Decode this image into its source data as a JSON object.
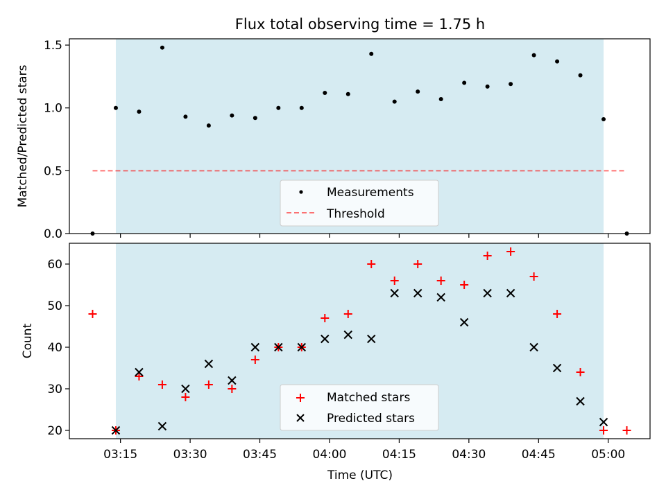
{
  "chart_data": [
    {
      "type": "scatter",
      "title": "Flux total observing time = 1.75 h",
      "ylabel": "Matched/Predicted stars",
      "xlabel": "",
      "ylim": [
        0,
        1.55
      ],
      "yticks": [
        "0.0",
        "0.5",
        "1.0",
        "1.5"
      ],
      "shaded_region": {
        "x_start": "03:14",
        "x_end": "04:59",
        "color": "#add8e6"
      },
      "grid": false,
      "legend_position": "lower center",
      "threshold": {
        "name": "Threshold",
        "y": 0.5,
        "x_start": "03:09",
        "x_end": "05:04",
        "color": "#ff0000",
        "style": "dashed"
      },
      "series": [
        {
          "name": "Measurements",
          "marker": "dot",
          "color": "#000000",
          "x": [
            "03:09",
            "03:14",
            "03:19",
            "03:24",
            "03:29",
            "03:34",
            "03:39",
            "03:44",
            "03:49",
            "03:54",
            "03:59",
            "04:04",
            "04:09",
            "04:14",
            "04:19",
            "04:24",
            "04:29",
            "04:34",
            "04:39",
            "04:44",
            "04:49",
            "04:54",
            "04:59",
            "05:04"
          ],
          "y": [
            0.0,
            1.0,
            0.97,
            1.48,
            0.93,
            0.86,
            0.94,
            0.92,
            1.0,
            1.0,
            1.12,
            1.11,
            1.43,
            1.05,
            1.13,
            1.07,
            1.2,
            1.17,
            1.19,
            1.42,
            1.37,
            1.26,
            0.91,
            0.0
          ]
        }
      ]
    },
    {
      "type": "scatter",
      "title": "",
      "ylabel": "Count",
      "xlabel": "Time (UTC)",
      "ylim": [
        18,
        65
      ],
      "yticks": [
        "20",
        "30",
        "40",
        "50",
        "60"
      ],
      "xlim": [
        "03:04",
        "05:09"
      ],
      "xticks": [
        "03:15",
        "03:30",
        "03:45",
        "04:00",
        "04:15",
        "04:30",
        "04:45",
        "05:00"
      ],
      "shaded_region": {
        "x_start": "03:14",
        "x_end": "04:59",
        "color": "#add8e6"
      },
      "grid": false,
      "legend_position": "lower center",
      "series": [
        {
          "name": "Matched stars",
          "marker": "plus",
          "color": "#ff0000",
          "x": [
            "03:09",
            "03:14",
            "03:19",
            "03:24",
            "03:29",
            "03:34",
            "03:39",
            "03:44",
            "03:49",
            "03:54",
            "03:59",
            "04:04",
            "04:09",
            "04:14",
            "04:19",
            "04:24",
            "04:29",
            "04:34",
            "04:39",
            "04:44",
            "04:49",
            "04:54",
            "04:59",
            "05:04"
          ],
          "y": [
            48,
            20,
            33,
            31,
            28,
            31,
            30,
            37,
            40,
            40,
            47,
            48,
            60,
            56,
            60,
            56,
            55,
            62,
            63,
            57,
            48,
            34,
            20,
            20
          ]
        },
        {
          "name": "Predicted stars",
          "marker": "x",
          "color": "#000000",
          "x": [
            "03:14",
            "03:19",
            "03:24",
            "03:29",
            "03:34",
            "03:39",
            "03:44",
            "03:49",
            "03:54",
            "03:59",
            "04:04",
            "04:09",
            "04:14",
            "04:19",
            "04:24",
            "04:29",
            "04:34",
            "04:39",
            "04:44",
            "04:49",
            "04:54",
            "04:59"
          ],
          "y": [
            20,
            34,
            21,
            30,
            36,
            32,
            40,
            40,
            40,
            42,
            43,
            42,
            53,
            53,
            52,
            46,
            53,
            53,
            40,
            35,
            27,
            22
          ]
        }
      ]
    }
  ]
}
